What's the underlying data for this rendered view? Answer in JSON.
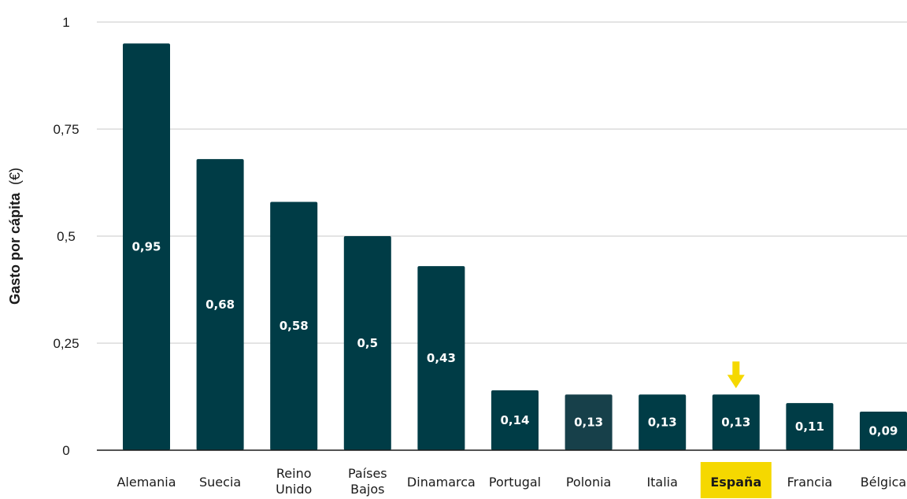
{
  "chart_data": {
    "type": "bar",
    "title": "",
    "ylabel_main": "Gasto por cápita",
    "ylabel_unit": "(€)",
    "xlabel": "",
    "ylim": [
      0,
      1
    ],
    "yticks": [
      0,
      0.25,
      0.5,
      0.75,
      1
    ],
    "ytick_labels": [
      "0",
      "0,25",
      "0,5",
      "0,75",
      "1"
    ],
    "grid": true,
    "categories": [
      [
        "Alemania"
      ],
      [
        "Suecia"
      ],
      [
        "Reino",
        "Unido"
      ],
      [
        "Países",
        "Bajos"
      ],
      [
        "Dinamarca"
      ],
      [
        "Portugal"
      ],
      [
        "Polonia"
      ],
      [
        "Italia"
      ],
      [
        "España"
      ],
      [
        "Francia"
      ],
      [
        "Bélgica"
      ]
    ],
    "values": [
      0.95,
      0.68,
      0.58,
      0.5,
      0.43,
      0.14,
      0.13,
      0.13,
      0.13,
      0.11,
      0.09
    ],
    "value_labels": [
      "0,95",
      "0,68",
      "0,58",
      "0,5",
      "0,43",
      "0,14",
      "0,13",
      "0,13",
      "0,13",
      "0,11",
      "0,09"
    ],
    "highlight_category": "España",
    "colors": {
      "bar": "#003c46",
      "bar_alt": "#17404a",
      "highlight": "#f5d800",
      "grid": "#c8c8c8",
      "axis": "#1a1a1a"
    }
  }
}
